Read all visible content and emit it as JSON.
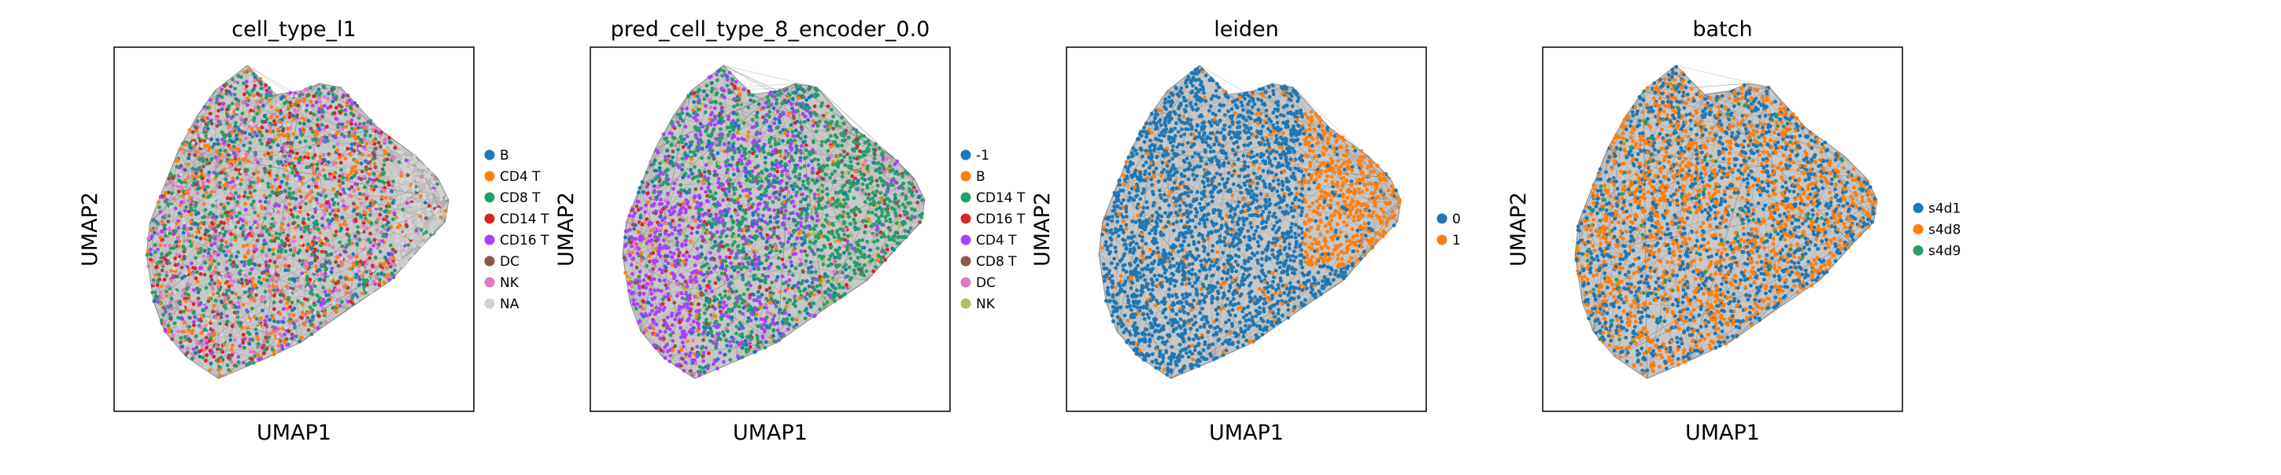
{
  "chart_data": [
    {
      "type": "scatter",
      "title": "cell_type_l1",
      "xlabel": "UMAP1",
      "ylabel": "UMAP2",
      "legend_placement": "right",
      "series": [
        {
          "name": "B",
          "color": "#1f77b4"
        },
        {
          "name": "CD4 T",
          "color": "#ff7f0e"
        },
        {
          "name": "CD8 T",
          "color": "#279e68"
        },
        {
          "name": "CD14 T",
          "color": "#d62728"
        },
        {
          "name": "CD16 T",
          "color": "#aa40fc"
        },
        {
          "name": "DC",
          "color": "#8c564b"
        },
        {
          "name": "NK",
          "color": "#e377c2"
        },
        {
          "name": "NA",
          "color": "#d3d3d3"
        }
      ]
    },
    {
      "type": "scatter",
      "title": "pred_cell_type_8_encoder_0.0",
      "xlabel": "UMAP1",
      "ylabel": "UMAP2",
      "legend_placement": "right",
      "series": [
        {
          "name": "-1",
          "color": "#1f77b4"
        },
        {
          "name": "B",
          "color": "#ff7f0e"
        },
        {
          "name": "CD14 T",
          "color": "#279e68"
        },
        {
          "name": "CD16 T",
          "color": "#d62728"
        },
        {
          "name": "CD4 T",
          "color": "#aa40fc"
        },
        {
          "name": "CD8 T",
          "color": "#8c564b"
        },
        {
          "name": "DC",
          "color": "#e377c2"
        },
        {
          "name": "NK",
          "color": "#b5bd61"
        }
      ]
    },
    {
      "type": "scatter",
      "title": "leiden",
      "xlabel": "UMAP1",
      "ylabel": "UMAP2",
      "legend_placement": "right",
      "series": [
        {
          "name": "0",
          "color": "#1f77b4"
        },
        {
          "name": "1",
          "color": "#ff7f0e"
        }
      ]
    },
    {
      "type": "scatter",
      "title": "batch",
      "xlabel": "UMAP1",
      "ylabel": "UMAP2",
      "legend_placement": "right",
      "series": [
        {
          "name": "s4d1",
          "color": "#1f77b4"
        },
        {
          "name": "s4d8",
          "color": "#ff7f0e"
        },
        {
          "name": "s4d9",
          "color": "#279e68"
        }
      ]
    }
  ]
}
